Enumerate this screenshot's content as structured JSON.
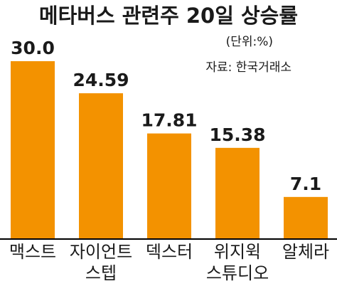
{
  "chart_data": {
    "type": "bar",
    "title": "메타버스 관련주 20일 상승률",
    "unit_note": "(단위:%)",
    "source_note": "자료: 한국거래소",
    "categories": [
      [
        "맥스트"
      ],
      [
        "자이언트",
        "스텝"
      ],
      [
        "덱스터"
      ],
      [
        "위지윅",
        "스튜디오"
      ],
      [
        "알체라"
      ]
    ],
    "value_labels": [
      "30.0",
      "24.59",
      "17.81",
      "15.38",
      "7.1"
    ],
    "values": [
      30.0,
      24.59,
      17.81,
      15.38,
      7.1
    ],
    "ylim": [
      0,
      30.0
    ],
    "bar_color": "#f39200",
    "grid": false,
    "legend": false
  }
}
